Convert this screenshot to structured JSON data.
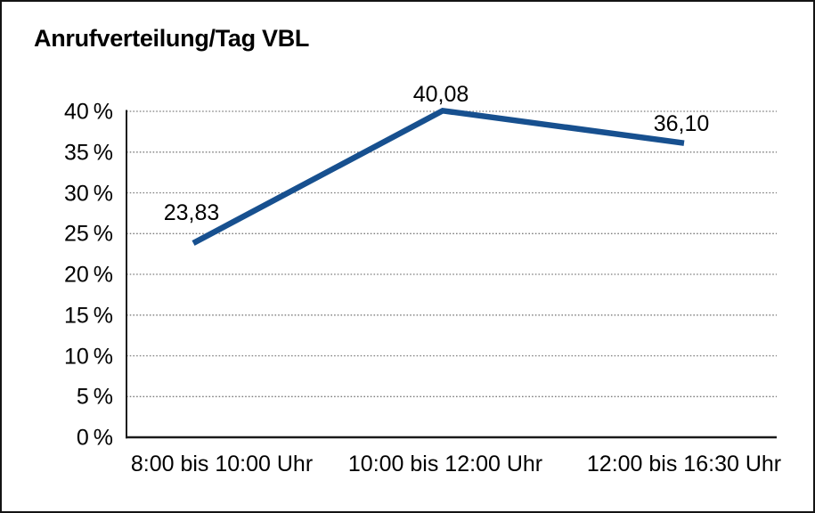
{
  "chart_data": {
    "type": "line",
    "title": "Anrufverteilung/Tag VBL",
    "categories": [
      "8:00 bis 10:00 Uhr",
      "10:00 bis 12:00 Uhr",
      "12:00 bis 16:30 Uhr"
    ],
    "values": [
      23.83,
      40.08,
      36.1
    ],
    "data_labels": [
      "23,83",
      "40,08",
      "36,10"
    ],
    "xlabel": "",
    "ylabel": "",
    "ylim": [
      0,
      40
    ],
    "ytick_values": [
      0,
      5,
      10,
      15,
      20,
      25,
      30,
      35,
      40
    ],
    "ytick_labels": [
      "0 %",
      "5 %",
      "10 %",
      "15 %",
      "20 %",
      "25 %",
      "30 %",
      "35 %",
      "40 %"
    ],
    "grid": "horizontal-dotted",
    "legend": "none",
    "colors": {
      "line": "#17508F",
      "grid": "#7D7D7D",
      "axis": "#1A1A1A",
      "text": "#000000",
      "background": "#FFFFFF",
      "frame_border": "#141414"
    }
  }
}
